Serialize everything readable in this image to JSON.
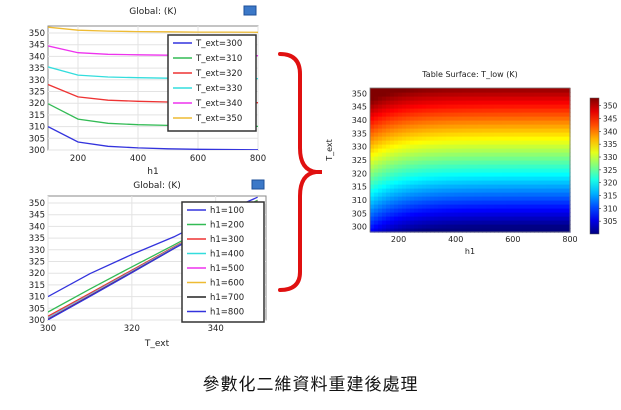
{
  "caption": "參數化二維資料重建後處理",
  "chart_data": [
    {
      "type": "line",
      "title": "Global: (K)",
      "xlabel": "h1",
      "ylabel": "",
      "xlim": [
        100,
        800
      ],
      "ylim": [
        300,
        353
      ],
      "x_ticks": [
        "200",
        "400",
        "600",
        "800"
      ],
      "y_ticks": [
        "300",
        "305",
        "310",
        "315",
        "320",
        "325",
        "330",
        "335",
        "340",
        "345",
        "350"
      ],
      "legend": "top-right",
      "x": [
        100,
        200,
        300,
        400,
        500,
        600,
        700,
        800
      ],
      "series": [
        {
          "name": "T_ext=300",
          "color": "#3333dd",
          "values": [
            310.0,
            303.4,
            301.6,
            300.9,
            300.5,
            300.3,
            300.2,
            300.1
          ]
        },
        {
          "name": "T_ext=310",
          "color": "#33bb55",
          "values": [
            319.8,
            313.2,
            311.4,
            310.8,
            310.5,
            310.3,
            310.2,
            310.1
          ]
        },
        {
          "name": "T_ext=320",
          "color": "#ee3333",
          "values": [
            328.0,
            322.7,
            321.3,
            320.8,
            320.5,
            320.4,
            320.3,
            320.2
          ]
        },
        {
          "name": "T_ext=330",
          "color": "#33dddd",
          "values": [
            335.5,
            332.0,
            331.2,
            330.9,
            330.7,
            330.6,
            330.5,
            330.5
          ]
        },
        {
          "name": "T_ext=340",
          "color": "#ee33ee",
          "values": [
            344.5,
            341.6,
            340.9,
            340.7,
            340.5,
            340.4,
            340.4,
            340.3
          ]
        },
        {
          "name": "T_ext=350",
          "color": "#eebb33",
          "values": [
            352.5,
            351.2,
            350.8,
            350.6,
            350.5,
            350.4,
            350.4,
            350.3
          ]
        }
      ]
    },
    {
      "type": "line",
      "title": "Global: (K)",
      "xlabel": "T_ext",
      "ylabel": "",
      "xlim": [
        300,
        352
      ],
      "ylim": [
        300,
        353
      ],
      "x_ticks": [
        "300",
        "320",
        "340"
      ],
      "y_ticks": [
        "300",
        "305",
        "310",
        "315",
        "320",
        "325",
        "330",
        "335",
        "340",
        "345",
        "350"
      ],
      "legend": "top-right",
      "x": [
        300,
        310,
        320,
        330,
        340,
        350
      ],
      "series": [
        {
          "name": "h1=100",
          "color": "#3333dd",
          "values": [
            310.0,
            319.8,
            328.0,
            335.5,
            344.5,
            352.5
          ]
        },
        {
          "name": "h1=200",
          "color": "#33bb55",
          "values": [
            303.4,
            313.2,
            322.7,
            332.0,
            341.6,
            351.2
          ]
        },
        {
          "name": "h1=300",
          "color": "#ee3333",
          "values": [
            301.6,
            311.4,
            321.3,
            331.2,
            340.9,
            350.8
          ]
        },
        {
          "name": "h1=400",
          "color": "#33dddd",
          "values": [
            300.9,
            310.8,
            320.8,
            330.9,
            340.7,
            350.6
          ]
        },
        {
          "name": "h1=500",
          "color": "#ee33ee",
          "values": [
            300.5,
            310.5,
            320.5,
            330.7,
            340.5,
            350.5
          ]
        },
        {
          "name": "h1=600",
          "color": "#eebb33",
          "values": [
            300.3,
            310.3,
            320.4,
            330.6,
            340.4,
            350.4
          ]
        },
        {
          "name": "h1=700",
          "color": "#222222",
          "values": [
            300.2,
            310.2,
            320.3,
            330.5,
            340.4,
            350.4
          ]
        },
        {
          "name": "h1=800",
          "color": "#3333dd",
          "values": [
            300.1,
            310.1,
            320.2,
            330.5,
            340.3,
            350.3
          ]
        }
      ]
    },
    {
      "type": "heatmap",
      "title": "Table Surface: T_low (K)",
      "xlabel": "h1",
      "ylabel": "T_ext",
      "xlim": [
        100,
        800
      ],
      "ylim": [
        298,
        352
      ],
      "x_ticks": [
        "200",
        "400",
        "600",
        "800"
      ],
      "y_ticks": [
        "300",
        "305",
        "310",
        "315",
        "320",
        "325",
        "330",
        "335",
        "340",
        "345",
        "350"
      ],
      "colorbar": {
        "min": 300,
        "max": 353,
        "ticks": [
          "305",
          "310",
          "315",
          "320",
          "325",
          "330",
          "335",
          "340",
          "345",
          "350"
        ]
      }
    }
  ]
}
